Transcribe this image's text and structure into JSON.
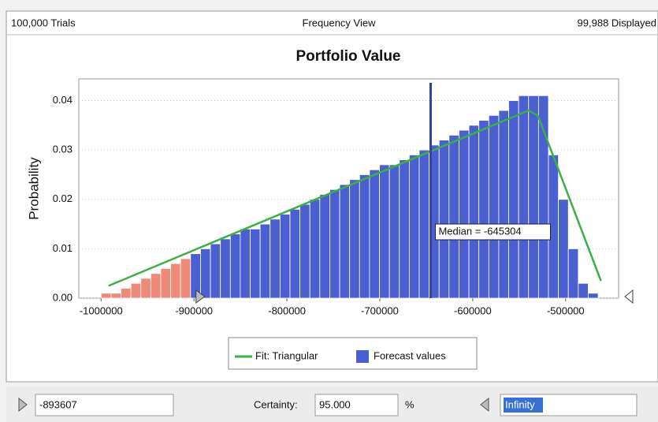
{
  "header": {
    "left": "100,000 Trials",
    "center": "Frequency View",
    "right": "99,988 Displayed"
  },
  "chart_data": {
    "type": "histogram",
    "title": "Portfolio Value",
    "y_label": "Probability",
    "bins": [
      -1000000,
      -989300,
      -978600,
      -967900,
      -957200,
      -946500,
      -935800,
      -925100,
      -914400,
      -903700,
      -893000,
      -882300,
      -871600,
      -860900,
      -850200,
      -839500,
      -828800,
      -818100,
      -807400,
      -796700,
      -786000,
      -775300,
      -764600,
      -753900,
      -743200,
      -732500,
      -721800,
      -711100,
      -700400,
      -689700,
      -679000,
      -668300,
      -657600,
      -646900,
      -636200,
      -625500,
      -614800,
      -604100,
      -593400,
      -582700,
      -572000,
      -561300,
      -550600,
      -539900,
      -529200,
      -518500,
      -507800,
      -497100,
      -486400,
      -475700,
      -465000
    ],
    "series": [
      {
        "name": "Fit: Triangular",
        "color": "#3cb043",
        "x": [
          -992000,
          -540000,
          -530000,
          -462000
        ],
        "values": [
          0.0025,
          0.038,
          0.037,
          0.0035
        ]
      },
      {
        "name": "Forecast values",
        "color": "#4a5fd0",
        "values": [
          0.001,
          0.001,
          0.002,
          0.003,
          0.004,
          0.005,
          0.006,
          0.007,
          0.008,
          0.009,
          0.01,
          0.011,
          0.012,
          0.013,
          0.014,
          0.014,
          0.015,
          0.016,
          0.017,
          0.018,
          0.019,
          0.02,
          0.021,
          0.022,
          0.023,
          0.024,
          0.025,
          0.026,
          0.027,
          0.027,
          0.028,
          0.029,
          0.03,
          0.031,
          0.032,
          0.033,
          0.034,
          0.035,
          0.036,
          0.037,
          0.038,
          0.04,
          0.041,
          0.041,
          0.041,
          0.029,
          0.02,
          0.01,
          0.003,
          0.001
        ]
      }
    ],
    "excluded_color": "#f08a78",
    "median": {
      "value": -645304,
      "label": "Median = -645304"
    },
    "xlim": [
      -1024000,
      -443000
    ],
    "xticks": [
      -1000000,
      -900000,
      -800000,
      -700000,
      -600000,
      -500000
    ],
    "ylim": [
      0,
      0.0444
    ],
    "yticks": [
      {
        "value": 0,
        "label": "0.00"
      },
      {
        "value": 0.01,
        "label": "0.01"
      },
      {
        "value": 0.02,
        "label": "0.02"
      },
      {
        "value": 0.03,
        "label": "0.03"
      },
      {
        "value": 0.04,
        "label": "0.04"
      }
    ],
    "grid": true
  },
  "footer": {
    "lower_bound": -893607,
    "certainty_label": "Certainty:",
    "certainty": {
      "value": 95,
      "label": "95.000"
    },
    "unit": "%",
    "upper_bound": "Infinity"
  }
}
